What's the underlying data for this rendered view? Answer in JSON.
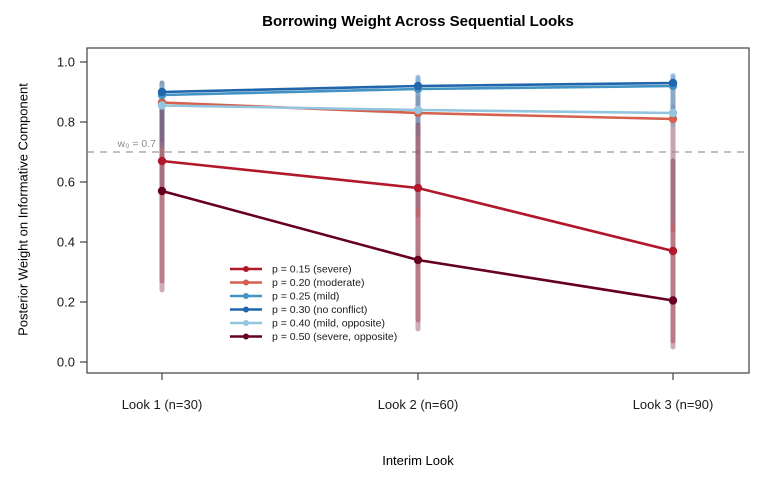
{
  "chart_data": {
    "type": "line",
    "title": "Borrowing Weight Across Sequential Looks",
    "xlabel": "Interim Look",
    "ylabel": "Posterior Weight on Informative Component",
    "categories": [
      "Look 1 (n=30)",
      "Look 2 (n=60)",
      "Look 3 (n=90)"
    ],
    "ylim": [
      0.0,
      1.0
    ],
    "y_tick_labels": [
      "0.0",
      "0.2",
      "0.4",
      "0.6",
      "0.8",
      "1.0"
    ],
    "y_tick_values": [
      0.0,
      0.2,
      0.4,
      0.6,
      0.8,
      1.0
    ],
    "grid": false,
    "frame_color": "#4d4d4d",
    "text_color": "#1a1a1a",
    "reference_line": {
      "value": 0.7,
      "label": "w₀ = 0.7",
      "color": "#9a9a9a"
    },
    "legend_position": "inside bottom-left",
    "series": [
      {
        "name": "p = 0.15 (severe)",
        "color": "#B2182B",
        "values": [
          0.67,
          0.58,
          0.37
        ],
        "ci_low": [
          0.27,
          0.14,
          0.07
        ],
        "ci_high": [
          0.9,
          0.88,
          0.85
        ]
      },
      {
        "name": "p = 0.20 (moderate)",
        "color": "#D6604D",
        "values": [
          0.865,
          0.83,
          0.81
        ],
        "ci_low": [
          0.57,
          0.49,
          0.44
        ],
        "ci_high": [
          0.93,
          0.92,
          0.91
        ]
      },
      {
        "name": "p = 0.25 (mild)",
        "color": "#4393C3",
        "values": [
          0.89,
          0.91,
          0.92
        ],
        "ci_low": [
          0.72,
          0.76,
          0.79
        ],
        "ci_high": [
          0.93,
          0.945,
          0.95
        ]
      },
      {
        "name": "p = 0.30 (no conflict)",
        "color": "#2166AC",
        "values": [
          0.9,
          0.92,
          0.93
        ],
        "ci_low": [
          0.74,
          0.8,
          0.82
        ],
        "ci_high": [
          0.93,
          0.95,
          0.955
        ]
      },
      {
        "name": "p = 0.40 (mild, opposite)",
        "color": "#92C5DE",
        "values": [
          0.855,
          0.84,
          0.83
        ],
        "ci_low": [
          0.58,
          0.52,
          0.47
        ],
        "ci_high": [
          0.92,
          0.92,
          0.915
        ]
      },
      {
        "name": "p = 0.50 (severe, opposite)",
        "color": "#67001F",
        "values": [
          0.57,
          0.34,
          0.205
        ],
        "ci_low": [
          0.24,
          0.11,
          0.05
        ],
        "ci_high": [
          0.87,
          0.79,
          0.67
        ]
      }
    ]
  }
}
